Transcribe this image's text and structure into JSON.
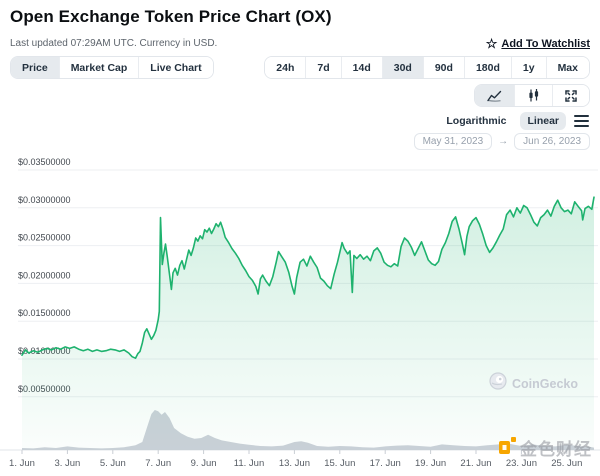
{
  "header": {
    "title": "Open Exchange Token Price Chart (OX)",
    "subtitle": "Last updated 07:29AM UTC. Currency in USD.",
    "watchlist_label": "Add To Watchlist",
    "watchlist_star": "☆"
  },
  "toolbar": {
    "view_tabs": [
      {
        "label": "Price",
        "selected": true
      },
      {
        "label": "Market Cap",
        "selected": false
      },
      {
        "label": "Live Chart",
        "selected": false
      }
    ],
    "range_tabs": [
      {
        "label": "24h",
        "selected": false
      },
      {
        "label": "7d",
        "selected": false
      },
      {
        "label": "14d",
        "selected": false
      },
      {
        "label": "30d",
        "selected": true
      },
      {
        "label": "90d",
        "selected": false
      },
      {
        "label": "180d",
        "selected": false
      },
      {
        "label": "1y",
        "selected": false
      },
      {
        "label": "Max",
        "selected": false
      }
    ],
    "chart_type_buttons": [
      {
        "icon": "line-chart-icon",
        "selected": true
      },
      {
        "icon": "candlestick-icon",
        "selected": false
      },
      {
        "icon": "fullscreen-icon",
        "selected": false
      }
    ],
    "scale_tabs": [
      {
        "label": "Logarithmic",
        "selected": false
      },
      {
        "label": "Linear",
        "selected": true
      }
    ],
    "date_from": "May 31, 2023",
    "date_to": "Jun 26, 2023",
    "date_arrow": "→"
  },
  "watermarks": {
    "coingecko": "CoinGecko",
    "jinse": "金色财经"
  },
  "chart_data": {
    "type": "line",
    "title": "Open Exchange Token (OX) price, USD, May 31 - Jun 26 2023",
    "x_unit": "day of June 2023",
    "x_range": [
      1,
      26.3
    ],
    "ylim": [
      0.0025,
      0.0375
    ],
    "grid": true,
    "y_gridlines": [
      0.035,
      0.03,
      0.025,
      0.02,
      0.015,
      0.01,
      0.005
    ],
    "y_tick_labels": [
      "$0.03500000",
      "$0.03000000",
      "$0.02500000",
      "$0.02000000",
      "$0.01500000",
      "$0.01000000",
      "$0.00500000"
    ],
    "x_tick_days": [
      1,
      3,
      5,
      7,
      9,
      11,
      13,
      15,
      17,
      19,
      21,
      23,
      25
    ],
    "x_tick_labels": [
      "1. Jun",
      "3. Jun",
      "5. Jun",
      "7. Jun",
      "9. Jun",
      "11. Jun",
      "13. Jun",
      "15. Jun",
      "17. Jun",
      "19. Jun",
      "21. Jun",
      "23. Jun",
      "25. Jun"
    ],
    "series": [
      {
        "name": "price_usd",
        "color": "#1eb26e",
        "points": [
          [
            1.0,
            0.0105
          ],
          [
            1.15,
            0.0112
          ],
          [
            1.3,
            0.0108
          ],
          [
            1.5,
            0.0111
          ],
          [
            1.7,
            0.0109
          ],
          [
            1.9,
            0.0112
          ],
          [
            2.1,
            0.0114
          ],
          [
            2.3,
            0.0112
          ],
          [
            2.5,
            0.0115
          ],
          [
            2.7,
            0.0113
          ],
          [
            2.9,
            0.0116
          ],
          [
            3.1,
            0.0114
          ],
          [
            3.3,
            0.0116
          ],
          [
            3.5,
            0.0113
          ],
          [
            3.7,
            0.0111
          ],
          [
            3.9,
            0.0113
          ],
          [
            4.1,
            0.011
          ],
          [
            4.3,
            0.0112
          ],
          [
            4.5,
            0.011
          ],
          [
            4.7,
            0.0111
          ],
          [
            4.9,
            0.0113
          ],
          [
            5.1,
            0.0112
          ],
          [
            5.3,
            0.011
          ],
          [
            5.5,
            0.0112
          ],
          [
            5.7,
            0.0108
          ],
          [
            5.85,
            0.0103
          ],
          [
            6.0,
            0.0101
          ],
          [
            6.1,
            0.0107
          ],
          [
            6.2,
            0.011
          ],
          [
            6.3,
            0.0121
          ],
          [
            6.4,
            0.0135
          ],
          [
            6.5,
            0.014
          ],
          [
            6.6,
            0.0133
          ],
          [
            6.7,
            0.0126
          ],
          [
            6.8,
            0.0131
          ],
          [
            6.9,
            0.0138
          ],
          [
            7.0,
            0.0152
          ],
          [
            7.05,
            0.0163
          ],
          [
            7.1,
            0.0287
          ],
          [
            7.18,
            0.0225
          ],
          [
            7.25,
            0.024
          ],
          [
            7.32,
            0.0252
          ],
          [
            7.4,
            0.0235
          ],
          [
            7.5,
            0.0212
          ],
          [
            7.58,
            0.0192
          ],
          [
            7.65,
            0.0214
          ],
          [
            7.75,
            0.022
          ],
          [
            7.85,
            0.0211
          ],
          [
            7.95,
            0.0224
          ],
          [
            8.05,
            0.023
          ],
          [
            8.15,
            0.0219
          ],
          [
            8.25,
            0.0232
          ],
          [
            8.35,
            0.0244
          ],
          [
            8.45,
            0.0237
          ],
          [
            8.55,
            0.0247
          ],
          [
            8.65,
            0.026
          ],
          [
            8.75,
            0.0256
          ],
          [
            8.85,
            0.0263
          ],
          [
            8.95,
            0.0259
          ],
          [
            9.05,
            0.0271
          ],
          [
            9.15,
            0.0268
          ],
          [
            9.25,
            0.0273
          ],
          [
            9.35,
            0.0266
          ],
          [
            9.45,
            0.0272
          ],
          [
            9.55,
            0.0279
          ],
          [
            9.65,
            0.0275
          ],
          [
            9.75,
            0.0281
          ],
          [
            9.85,
            0.0272
          ],
          [
            9.95,
            0.0261
          ],
          [
            10.1,
            0.0254
          ],
          [
            10.25,
            0.0246
          ],
          [
            10.4,
            0.024
          ],
          [
            10.55,
            0.0233
          ],
          [
            10.7,
            0.0224
          ],
          [
            10.85,
            0.0217
          ],
          [
            11.0,
            0.0209
          ],
          [
            11.15,
            0.0204
          ],
          [
            11.3,
            0.0196
          ],
          [
            11.4,
            0.0186
          ],
          [
            11.5,
            0.0206
          ],
          [
            11.6,
            0.0211
          ],
          [
            11.75,
            0.0203
          ],
          [
            11.9,
            0.0197
          ],
          [
            12.05,
            0.0209
          ],
          [
            12.2,
            0.0228
          ],
          [
            12.3,
            0.0242
          ],
          [
            12.45,
            0.0235
          ],
          [
            12.6,
            0.0228
          ],
          [
            12.75,
            0.0215
          ],
          [
            12.9,
            0.0196
          ],
          [
            13.0,
            0.0186
          ],
          [
            13.1,
            0.0208
          ],
          [
            13.25,
            0.0228
          ],
          [
            13.4,
            0.0232
          ],
          [
            13.55,
            0.0223
          ],
          [
            13.7,
            0.0236
          ],
          [
            13.85,
            0.0228
          ],
          [
            14.0,
            0.0221
          ],
          [
            14.15,
            0.0207
          ],
          [
            14.3,
            0.0203
          ],
          [
            14.45,
            0.0197
          ],
          [
            14.6,
            0.0193
          ],
          [
            14.75,
            0.0212
          ],
          [
            14.9,
            0.0228
          ],
          [
            15.0,
            0.0241
          ],
          [
            15.1,
            0.0254
          ],
          [
            15.2,
            0.0246
          ],
          [
            15.35,
            0.0239
          ],
          [
            15.45,
            0.0243
          ],
          [
            15.55,
            0.0188
          ],
          [
            15.62,
            0.0237
          ],
          [
            15.75,
            0.0233
          ],
          [
            15.9,
            0.0238
          ],
          [
            16.05,
            0.0232
          ],
          [
            16.2,
            0.0236
          ],
          [
            16.35,
            0.023
          ],
          [
            16.5,
            0.0243
          ],
          [
            16.65,
            0.0247
          ],
          [
            16.8,
            0.024
          ],
          [
            16.95,
            0.0228
          ],
          [
            17.1,
            0.0224
          ],
          [
            17.25,
            0.0222
          ],
          [
            17.4,
            0.0226
          ],
          [
            17.55,
            0.0223
          ],
          [
            17.7,
            0.0249
          ],
          [
            17.85,
            0.026
          ],
          [
            18.0,
            0.0256
          ],
          [
            18.15,
            0.0248
          ],
          [
            18.3,
            0.0237
          ],
          [
            18.45,
            0.0246
          ],
          [
            18.6,
            0.0255
          ],
          [
            18.75,
            0.0243
          ],
          [
            18.9,
            0.0231
          ],
          [
            19.05,
            0.0226
          ],
          [
            19.2,
            0.0224
          ],
          [
            19.35,
            0.0229
          ],
          [
            19.5,
            0.0245
          ],
          [
            19.65,
            0.0254
          ],
          [
            19.8,
            0.0266
          ],
          [
            19.95,
            0.0282
          ],
          [
            20.1,
            0.0288
          ],
          [
            20.25,
            0.0272
          ],
          [
            20.4,
            0.0252
          ],
          [
            20.5,
            0.0238
          ],
          [
            20.6,
            0.0262
          ],
          [
            20.7,
            0.0275
          ],
          [
            20.85,
            0.0283
          ],
          [
            21.0,
            0.0287
          ],
          [
            21.15,
            0.0278
          ],
          [
            21.3,
            0.0265
          ],
          [
            21.45,
            0.025
          ],
          [
            21.6,
            0.0241
          ],
          [
            21.75,
            0.0247
          ],
          [
            21.9,
            0.0255
          ],
          [
            22.05,
            0.0264
          ],
          [
            22.2,
            0.0272
          ],
          [
            22.35,
            0.0291
          ],
          [
            22.5,
            0.0297
          ],
          [
            22.65,
            0.0288
          ],
          [
            22.8,
            0.03
          ],
          [
            22.95,
            0.0293
          ],
          [
            23.1,
            0.0303
          ],
          [
            23.25,
            0.03
          ],
          [
            23.4,
            0.0291
          ],
          [
            23.55,
            0.0281
          ],
          [
            23.7,
            0.0276
          ],
          [
            23.85,
            0.0287
          ],
          [
            24.0,
            0.0291
          ],
          [
            24.15,
            0.0297
          ],
          [
            24.3,
            0.0289
          ],
          [
            24.45,
            0.0302
          ],
          [
            24.6,
            0.031
          ],
          [
            24.75,
            0.03
          ],
          [
            24.9,
            0.0295
          ],
          [
            25.05,
            0.0297
          ],
          [
            25.2,
            0.0292
          ],
          [
            25.35,
            0.0308
          ],
          [
            25.5,
            0.0302
          ],
          [
            25.65,
            0.0296
          ],
          [
            25.7,
            0.0284
          ],
          [
            25.8,
            0.0299
          ],
          [
            25.95,
            0.0302
          ],
          [
            26.1,
            0.0298
          ],
          [
            26.2,
            0.0314
          ]
        ]
      },
      {
        "name": "volume_relative",
        "color": "#c9cfd7",
        "note": "relative height 0-1 of volume area at bottom",
        "points": [
          [
            1.0,
            0.05
          ],
          [
            1.5,
            0.04
          ],
          [
            2.0,
            0.07
          ],
          [
            2.5,
            0.05
          ],
          [
            3.0,
            0.09
          ],
          [
            3.5,
            0.06
          ],
          [
            4.0,
            0.05
          ],
          [
            4.5,
            0.04
          ],
          [
            5.0,
            0.05
          ],
          [
            5.5,
            0.07
          ],
          [
            6.0,
            0.12
          ],
          [
            6.3,
            0.2
          ],
          [
            6.5,
            0.55
          ],
          [
            6.7,
            0.9
          ],
          [
            6.85,
            1.0
          ],
          [
            7.0,
            0.97
          ],
          [
            7.15,
            0.88
          ],
          [
            7.3,
            0.95
          ],
          [
            7.5,
            0.8
          ],
          [
            7.7,
            0.55
          ],
          [
            8.0,
            0.42
          ],
          [
            8.3,
            0.33
          ],
          [
            8.6,
            0.28
          ],
          [
            8.9,
            0.3
          ],
          [
            9.2,
            0.38
          ],
          [
            9.5,
            0.3
          ],
          [
            9.8,
            0.24
          ],
          [
            10.2,
            0.2
          ],
          [
            10.6,
            0.16
          ],
          [
            11.0,
            0.13
          ],
          [
            11.5,
            0.1
          ],
          [
            12.0,
            0.09
          ],
          [
            12.5,
            0.11
          ],
          [
            13.0,
            0.2
          ],
          [
            13.3,
            0.22
          ],
          [
            13.6,
            0.18
          ],
          [
            14.0,
            0.1
          ],
          [
            14.5,
            0.08
          ],
          [
            15.0,
            0.1
          ],
          [
            15.5,
            0.09
          ],
          [
            16.0,
            0.07
          ],
          [
            16.5,
            0.06
          ],
          [
            17.0,
            0.09
          ],
          [
            17.5,
            0.11
          ],
          [
            18.0,
            0.12
          ],
          [
            18.5,
            0.1
          ],
          [
            19.0,
            0.08
          ],
          [
            19.5,
            0.14
          ],
          [
            20.0,
            0.12
          ],
          [
            20.5,
            0.1
          ],
          [
            21.0,
            0.09
          ],
          [
            21.5,
            0.12
          ],
          [
            22.0,
            0.14
          ],
          [
            22.3,
            0.18
          ],
          [
            22.6,
            0.14
          ],
          [
            23.0,
            0.1
          ],
          [
            23.5,
            0.14
          ],
          [
            24.0,
            0.1
          ],
          [
            24.5,
            0.09
          ],
          [
            25.0,
            0.13
          ],
          [
            25.5,
            0.1
          ],
          [
            26.0,
            0.08
          ],
          [
            26.2,
            0.06
          ]
        ]
      }
    ],
    "legend": "none"
  }
}
